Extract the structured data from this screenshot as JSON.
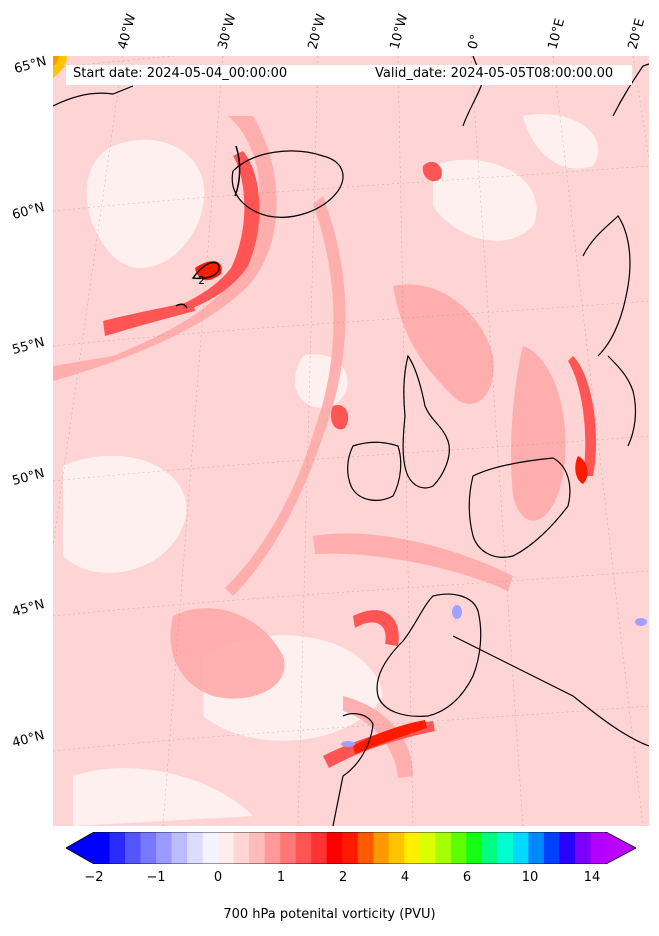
{
  "header": {
    "start_date": "Start date: 2024-05-04_00:00:00",
    "valid_date": "Valid_date: 2024-05-05T08:00:00.00"
  },
  "map": {
    "projection": "lambert-conformal",
    "region": "North Atlantic / Western Europe",
    "field": "700 hPa potential vorticity",
    "lon_labels": [
      "40°W",
      "30°W",
      "20°W",
      "10°W",
      "0°",
      "10°E",
      "20°E"
    ],
    "lat_labels": [
      "65°N",
      "60°N",
      "55°N",
      "50°N",
      "45°N",
      "40°N"
    ],
    "contour_label": "2",
    "background_color": "#ffd4d4",
    "coastline_color": "#000000"
  },
  "colorbar": {
    "label": "700 hPa potenital vorticity (PVU)",
    "tick_labels": [
      "−2",
      "−1",
      "0",
      "1",
      "2",
      "4",
      "6",
      "10",
      "14"
    ],
    "extend": "both",
    "colors": [
      "#0000ff",
      "#2a2aff",
      "#5555ff",
      "#7878ff",
      "#9a9aff",
      "#bbbbff",
      "#dcdcff",
      "#f3f3ff",
      "#ffecec",
      "#ffd4d4",
      "#ffbbbb",
      "#ff9999",
      "#ff7777",
      "#ff5555",
      "#ff3333",
      "#ff0000",
      "#ff1a00",
      "#ff5a00",
      "#ff9900",
      "#ffc400",
      "#ffee00",
      "#dcff00",
      "#a6ff00",
      "#5cff00",
      "#14ff14",
      "#00ff80",
      "#00ffd0",
      "#00d8ff",
      "#0088ff",
      "#0040ff",
      "#2a00ff",
      "#7a00ff",
      "#b400ff"
    ],
    "under_color": "#0000ff",
    "over_color": "#bb00ff"
  }
}
